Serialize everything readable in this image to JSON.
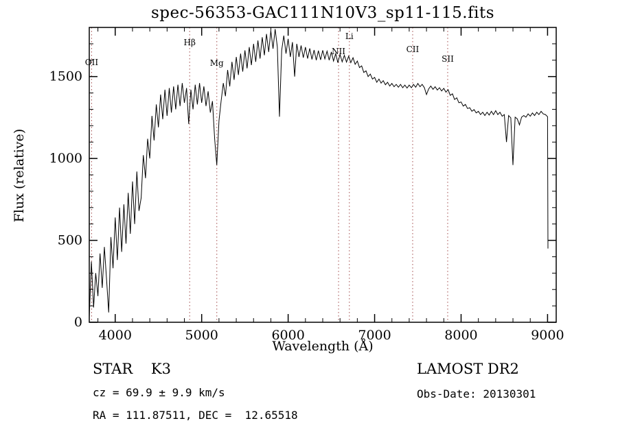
{
  "chart_data": {
    "type": "line",
    "title": "spec-56353-GAC111N10V3_sp11-115.fits",
    "xlabel": "Wavelength (Å)",
    "ylabel": "Flux (relative)",
    "xlim": [
      3700,
      9100
    ],
    "ylim": [
      0,
      1800
    ],
    "x_major_ticks": [
      4000,
      5000,
      6000,
      7000,
      8000,
      9000
    ],
    "x_minor_step": 200,
    "y_major_ticks": [
      0,
      500,
      1000,
      1500
    ],
    "y_minor_step": 100,
    "grid": false,
    "legend": "none",
    "line_color": "#000000",
    "line_marker_color": "#a04848",
    "spectral_lines": [
      {
        "label": "OII",
        "wavelength": 3727,
        "label_y": 95
      },
      {
        "label": "Hβ",
        "wavelength": 4861,
        "label_y": 66
      },
      {
        "label": "Mg",
        "wavelength": 5175,
        "label_y": 96
      },
      {
        "label": "NII",
        "wavelength": 6583,
        "label_y": 79
      },
      {
        "label": "Li",
        "wavelength": 6708,
        "label_y": 57
      },
      {
        "label": "CII",
        "wavelength": 7440,
        "label_y": 76
      },
      {
        "label": "SII",
        "wavelength": 7845,
        "label_y": 90
      }
    ],
    "points": [
      [
        3700,
        30
      ],
      [
        3725,
        370
      ],
      [
        3750,
        90
      ],
      [
        3775,
        300
      ],
      [
        3800,
        160
      ],
      [
        3825,
        420
      ],
      [
        3850,
        210
      ],
      [
        3875,
        460
      ],
      [
        3900,
        260
      ],
      [
        3925,
        60
      ],
      [
        3950,
        520
      ],
      [
        3975,
        330
      ],
      [
        4000,
        640
      ],
      [
        4025,
        380
      ],
      [
        4050,
        700
      ],
      [
        4075,
        430
      ],
      [
        4100,
        720
      ],
      [
        4125,
        480
      ],
      [
        4150,
        790
      ],
      [
        4175,
        540
      ],
      [
        4200,
        860
      ],
      [
        4225,
        600
      ],
      [
        4250,
        920
      ],
      [
        4275,
        680
      ],
      [
        4300,
        760
      ],
      [
        4325,
        1020
      ],
      [
        4350,
        880
      ],
      [
        4375,
        1120
      ],
      [
        4400,
        1000
      ],
      [
        4425,
        1260
      ],
      [
        4450,
        1110
      ],
      [
        4475,
        1330
      ],
      [
        4500,
        1190
      ],
      [
        4525,
        1390
      ],
      [
        4550,
        1240
      ],
      [
        4575,
        1420
      ],
      [
        4600,
        1260
      ],
      [
        4625,
        1430
      ],
      [
        4650,
        1280
      ],
      [
        4675,
        1440
      ],
      [
        4700,
        1300
      ],
      [
        4725,
        1450
      ],
      [
        4750,
        1320
      ],
      [
        4775,
        1460
      ],
      [
        4800,
        1340
      ],
      [
        4825,
        1430
      ],
      [
        4850,
        1210
      ],
      [
        4875,
        1420
      ],
      [
        4900,
        1300
      ],
      [
        4925,
        1450
      ],
      [
        4950,
        1330
      ],
      [
        4975,
        1460
      ],
      [
        5000,
        1340
      ],
      [
        5025,
        1440
      ],
      [
        5050,
        1320
      ],
      [
        5075,
        1410
      ],
      [
        5100,
        1280
      ],
      [
        5125,
        1350
      ],
      [
        5150,
        1120
      ],
      [
        5175,
        960
      ],
      [
        5200,
        1230
      ],
      [
        5225,
        1350
      ],
      [
        5250,
        1460
      ],
      [
        5275,
        1380
      ],
      [
        5300,
        1540
      ],
      [
        5325,
        1440
      ],
      [
        5350,
        1590
      ],
      [
        5375,
        1480
      ],
      [
        5400,
        1620
      ],
      [
        5425,
        1510
      ],
      [
        5450,
        1640
      ],
      [
        5475,
        1530
      ],
      [
        5500,
        1660
      ],
      [
        5525,
        1550
      ],
      [
        5550,
        1680
      ],
      [
        5575,
        1570
      ],
      [
        5600,
        1700
      ],
      [
        5625,
        1590
      ],
      [
        5650,
        1720
      ],
      [
        5675,
        1610
      ],
      [
        5700,
        1740
      ],
      [
        5725,
        1630
      ],
      [
        5750,
        1760
      ],
      [
        5775,
        1650
      ],
      [
        5800,
        1780
      ],
      [
        5825,
        1670
      ],
      [
        5850,
        1790
      ],
      [
        5875,
        1680
      ],
      [
        5900,
        1255
      ],
      [
        5925,
        1660
      ],
      [
        5950,
        1750
      ],
      [
        5975,
        1640
      ],
      [
        6000,
        1730
      ],
      [
        6025,
        1620
      ],
      [
        6050,
        1710
      ],
      [
        6075,
        1500
      ],
      [
        6100,
        1700
      ],
      [
        6125,
        1620
      ],
      [
        6150,
        1690
      ],
      [
        6175,
        1615
      ],
      [
        6200,
        1680
      ],
      [
        6225,
        1610
      ],
      [
        6250,
        1672
      ],
      [
        6275,
        1605
      ],
      [
        6300,
        1662
      ],
      [
        6325,
        1600
      ],
      [
        6350,
        1658
      ],
      [
        6375,
        1602
      ],
      [
        6400,
        1660
      ],
      [
        6425,
        1608
      ],
      [
        6450,
        1655
      ],
      [
        6475,
        1600
      ],
      [
        6500,
        1650
      ],
      [
        6525,
        1595
      ],
      [
        6550,
        1640
      ],
      [
        6575,
        1585
      ],
      [
        6600,
        1635
      ],
      [
        6625,
        1590
      ],
      [
        6650,
        1630
      ],
      [
        6675,
        1588
      ],
      [
        6700,
        1625
      ],
      [
        6725,
        1585
      ],
      [
        6750,
        1615
      ],
      [
        6775,
        1575
      ],
      [
        6800,
        1595
      ],
      [
        6825,
        1555
      ],
      [
        6850,
        1565
      ],
      [
        6875,
        1525
      ],
      [
        6900,
        1535
      ],
      [
        6925,
        1500
      ],
      [
        6950,
        1515
      ],
      [
        6975,
        1485
      ],
      [
        7000,
        1495
      ],
      [
        7025,
        1465
      ],
      [
        7050,
        1485
      ],
      [
        7075,
        1460
      ],
      [
        7100,
        1475
      ],
      [
        7125,
        1450
      ],
      [
        7150,
        1465
      ],
      [
        7175,
        1442
      ],
      [
        7200,
        1458
      ],
      [
        7225,
        1438
      ],
      [
        7250,
        1452
      ],
      [
        7275,
        1435
      ],
      [
        7300,
        1452
      ],
      [
        7325,
        1432
      ],
      [
        7350,
        1448
      ],
      [
        7375,
        1430
      ],
      [
        7400,
        1448
      ],
      [
        7425,
        1432
      ],
      [
        7450,
        1452
      ],
      [
        7475,
        1435
      ],
      [
        7500,
        1458
      ],
      [
        7525,
        1438
      ],
      [
        7550,
        1452
      ],
      [
        7575,
        1432
      ],
      [
        7600,
        1390
      ],
      [
        7625,
        1425
      ],
      [
        7650,
        1442
      ],
      [
        7675,
        1422
      ],
      [
        7700,
        1438
      ],
      [
        7725,
        1418
      ],
      [
        7750,
        1432
      ],
      [
        7775,
        1412
      ],
      [
        7800,
        1428
      ],
      [
        7825,
        1405
      ],
      [
        7850,
        1420
      ],
      [
        7875,
        1385
      ],
      [
        7900,
        1395
      ],
      [
        7925,
        1360
      ],
      [
        7950,
        1370
      ],
      [
        7975,
        1340
      ],
      [
        8000,
        1345
      ],
      [
        8025,
        1320
      ],
      [
        8050,
        1330
      ],
      [
        8075,
        1305
      ],
      [
        8100,
        1310
      ],
      [
        8125,
        1288
      ],
      [
        8150,
        1298
      ],
      [
        8175,
        1278
      ],
      [
        8200,
        1288
      ],
      [
        8225,
        1268
      ],
      [
        8250,
        1282
      ],
      [
        8275,
        1262
      ],
      [
        8300,
        1282
      ],
      [
        8325,
        1265
      ],
      [
        8350,
        1288
      ],
      [
        8375,
        1268
      ],
      [
        8400,
        1292
      ],
      [
        8425,
        1268
      ],
      [
        8450,
        1282
      ],
      [
        8475,
        1258
      ],
      [
        8500,
        1268
      ],
      [
        8525,
        1100
      ],
      [
        8550,
        1262
      ],
      [
        8575,
        1248
      ],
      [
        8600,
        960
      ],
      [
        8625,
        1252
      ],
      [
        8650,
        1242
      ],
      [
        8675,
        1205
      ],
      [
        8700,
        1252
      ],
      [
        8725,
        1262
      ],
      [
        8750,
        1252
      ],
      [
        8775,
        1272
      ],
      [
        8800,
        1258
      ],
      [
        8825,
        1278
      ],
      [
        8850,
        1262
      ],
      [
        8875,
        1282
      ],
      [
        8900,
        1268
      ],
      [
        8925,
        1288
      ],
      [
        8950,
        1272
      ],
      [
        8975,
        1268
      ],
      [
        9000,
        1255
      ],
      [
        9005,
        450
      ]
    ]
  },
  "annotations": {
    "class_label": "STAR    K3",
    "survey": "LAMOST DR2",
    "cz": "cz = 69.9 ± 9.9 km/s",
    "obs_date": "Obs-Date: 20130301",
    "coords": "RA = 111.87511, DEC =  12.65518"
  }
}
